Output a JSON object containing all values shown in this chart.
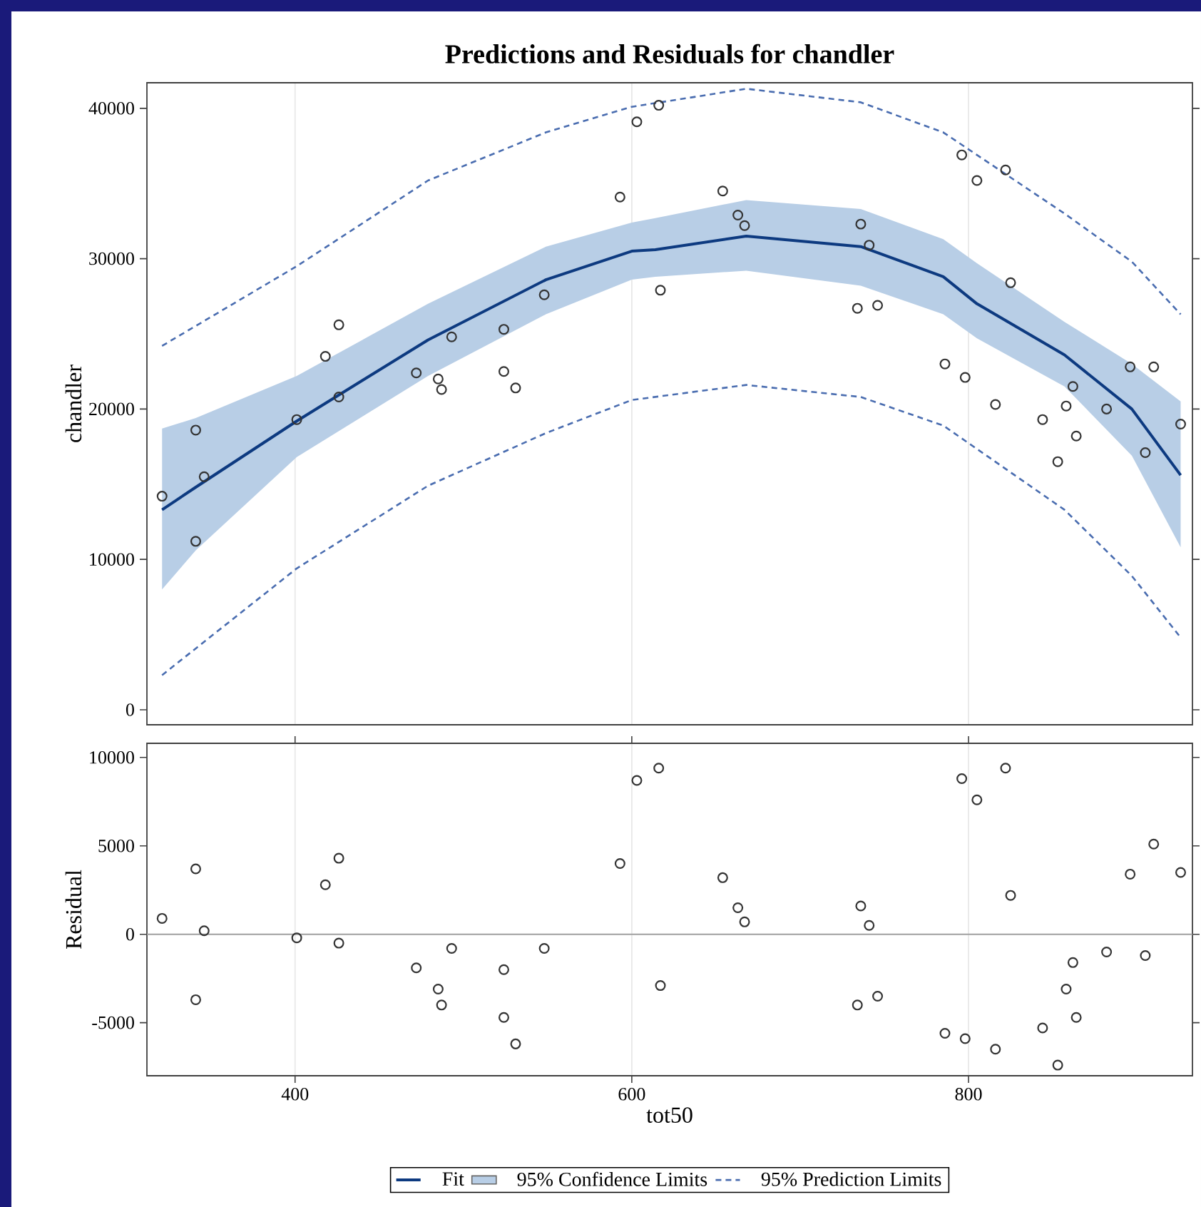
{
  "chart_data": [
    {
      "type": "scatter",
      "title": "Predictions and Residuals for chandler",
      "ylabel": "chandler",
      "xlim": [
        312,
        933
      ],
      "ylim": [
        -1000,
        41700
      ],
      "xticks": [
        400,
        600,
        800
      ],
      "yticks": [
        0,
        10000,
        20000,
        30000,
        40000
      ],
      "tick_labels": "y",
      "grid": "x",
      "legend": "bottom",
      "series": [
        {
          "type": "scatter",
          "marker": "circle",
          "color": "#333333",
          "x": [
            321,
            341,
            346,
            341,
            401,
            418,
            426,
            426,
            472,
            485,
            487,
            493,
            524,
            524,
            531,
            548,
            593,
            603,
            616,
            617,
            654,
            663,
            667,
            736,
            741,
            734,
            746,
            796,
            805,
            822,
            825,
            786,
            798,
            816,
            844,
            853,
            858,
            862,
            864,
            882,
            896,
            910,
            905,
            926
          ],
          "values": [
            14200,
            18600,
            15500,
            11200,
            19300,
            23500,
            25600,
            20800,
            22400,
            22000,
            21300,
            24800,
            22500,
            25300,
            21400,
            27600,
            34100,
            39100,
            40200,
            27900,
            34500,
            32900,
            32200,
            32300,
            30900,
            26700,
            26900,
            36900,
            35200,
            35900,
            28400,
            23000,
            22100,
            20300,
            19300,
            16500,
            20200,
            21500,
            18200,
            20000,
            22800,
            22800,
            17100,
            19000
          ]
        },
        {
          "type": "line",
          "name": "Fit",
          "color": "#0d3a80",
          "line_style": "solid",
          "x": [
            321,
            341,
            401,
            479,
            549,
            600,
            614,
            668,
            736,
            785,
            805,
            857,
            897,
            926
          ],
          "values": [
            13300,
            14800,
            19200,
            24600,
            28600,
            30500,
            30600,
            31500,
            30800,
            28800,
            27000,
            23600,
            20000,
            15600
          ],
          "upper": [
            18700,
            19400,
            22200,
            27000,
            30800,
            32400,
            32700,
            33900,
            33300,
            31300,
            29700,
            25800,
            23000,
            20500
          ],
          "lower": [
            8000,
            10600,
            16800,
            22200,
            26300,
            28600,
            28800,
            29200,
            28200,
            26300,
            24700,
            21500,
            16900,
            10800
          ]
        },
        {
          "type": "area",
          "name": "95% Confidence Limits",
          "color": "#b8cee6"
        },
        {
          "type": "line",
          "name": "95% Prediction Limits",
          "color": "#4a6db0",
          "line_style": "dashed",
          "x": [
            321,
            401,
            479,
            549,
            600,
            668,
            736,
            785,
            857,
            897,
            926
          ],
          "values": [
            24200,
            29500,
            35200,
            38400,
            40100,
            41300,
            40400,
            38400,
            33000,
            29800,
            26300
          ]
        },
        {
          "type": "line",
          "color": "#4a6db0",
          "line_style": "dashed",
          "x": [
            321,
            401,
            479,
            549,
            600,
            668,
            736,
            785,
            857,
            897,
            926
          ],
          "values": [
            2300,
            9400,
            14900,
            18400,
            20600,
            21600,
            20800,
            18900,
            13300,
            8900,
            4800
          ]
        }
      ]
    },
    {
      "type": "scatter",
      "xlabel": "tot50",
      "ylabel": "Residual",
      "marker": "circle",
      "color": "#333333",
      "xlim": [
        312,
        933
      ],
      "ylim": [
        -8000,
        10800
      ],
      "xticks": [
        400,
        600,
        800
      ],
      "yticks": [
        -5000,
        0,
        5000,
        10000
      ],
      "grid": "x",
      "ref_lines": [
        {
          "axis": "y",
          "value": 0,
          "color": "#a0a0a0"
        }
      ],
      "x": [
        321,
        341,
        346,
        341,
        401,
        418,
        426,
        426,
        472,
        485,
        487,
        493,
        524,
        524,
        531,
        548,
        593,
        603,
        616,
        617,
        654,
        663,
        667,
        736,
        741,
        734,
        746,
        796,
        805,
        822,
        825,
        786,
        798,
        816,
        844,
        853,
        858,
        862,
        864,
        882,
        896,
        910,
        905,
        926
      ],
      "values": [
        900,
        3700,
        200,
        -3700,
        -200,
        2800,
        4300,
        -500,
        -1900,
        -3100,
        -4000,
        -800,
        -4700,
        -2000,
        -6200,
        -800,
        4000,
        8700,
        9400,
        -2900,
        3200,
        1500,
        700,
        1600,
        500,
        -4000,
        -3500,
        8800,
        7600,
        9400,
        2200,
        -5600,
        -5900,
        -6500,
        -5300,
        -7400,
        -3100,
        -1600,
        -4700,
        -1000,
        3400,
        5100,
        -1200,
        3500
      ]
    }
  ]
}
